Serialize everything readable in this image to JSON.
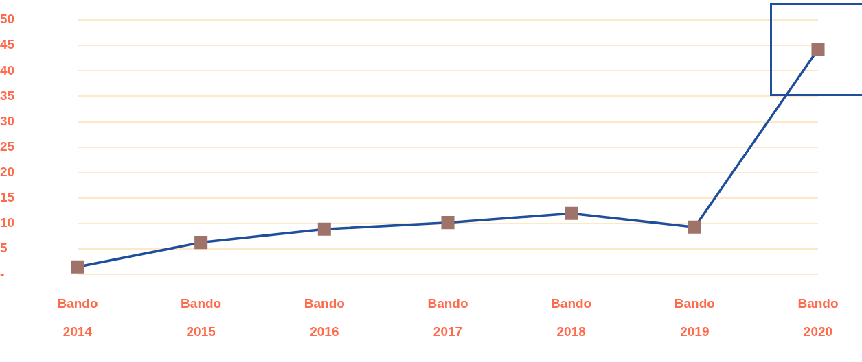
{
  "chart_data": {
    "type": "line",
    "categories": [
      "Bando 2014",
      "Bando 2015",
      "Bando 2016",
      "Bando 2017",
      "Bando 2018",
      "Bando 2019",
      "Bando 2020"
    ],
    "series": [
      {
        "color": "#1f4e9c",
        "values": [
          1.5,
          6.3,
          8.9,
          10.2,
          12.0,
          9.3,
          44.2
        ]
      }
    ],
    "marker": "square",
    "line_style": "solid",
    "grid": "y",
    "legend": false,
    "ylim": [
      0,
      50
    ],
    "yticks": [
      {
        "value": 0,
        "label": "-"
      },
      5,
      10,
      15,
      20,
      25,
      30,
      35,
      40,
      45,
      50
    ]
  }
}
